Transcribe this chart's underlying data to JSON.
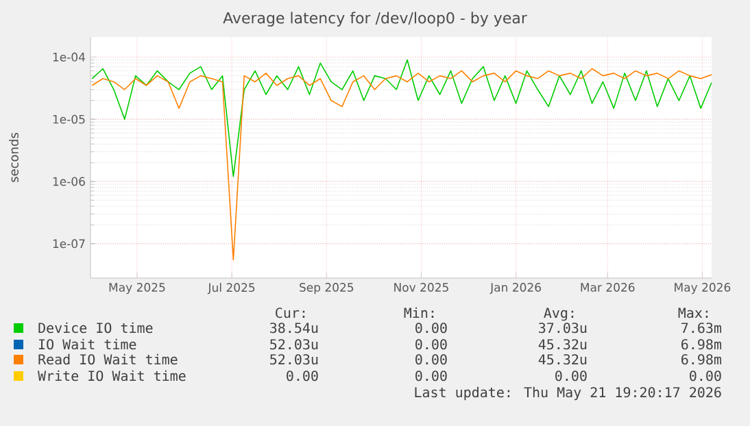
{
  "chart_data": {
    "type": "line",
    "title": "Average latency for /dev/loop0 - by year",
    "ylabel": "seconds",
    "log": true,
    "grid": true,
    "legend": "bottom",
    "xlim": [
      "2025-04-16",
      "2026-05-21"
    ],
    "xticks": [
      {
        "value": "2025-05-16",
        "label": "May 2025"
      },
      {
        "value": "2025-07-16",
        "label": "Jul 2025"
      },
      {
        "value": "2025-09-15",
        "label": "Sep 2025"
      },
      {
        "value": "2025-11-15",
        "label": "Nov 2025"
      },
      {
        "value": "2026-01-15",
        "label": "Jan 2026"
      },
      {
        "value": "2026-03-15",
        "label": "Mar 2026"
      },
      {
        "value": "2026-05-15",
        "label": "May 2026"
      }
    ],
    "ylim": [
      2.8e-08,
      0.00021
    ],
    "yticks": [
      {
        "value": 1e-07,
        "label": "1e-07"
      },
      {
        "value": 1e-06,
        "label": "1e-06"
      },
      {
        "value": 1e-05,
        "label": "1e-05"
      },
      {
        "value": 0.0001,
        "label": "1e-04"
      }
    ],
    "x": [
      "2025-04-17",
      "2025-04-24",
      "2025-05-01",
      "2025-05-08",
      "2025-05-15",
      "2025-05-22",
      "2025-05-29",
      "2025-06-05",
      "2025-06-12",
      "2025-06-19",
      "2025-06-26",
      "2025-07-03",
      "2025-07-10",
      "2025-07-17",
      "2025-07-24",
      "2025-07-31",
      "2025-08-07",
      "2025-08-14",
      "2025-08-21",
      "2025-08-28",
      "2025-09-04",
      "2025-09-11",
      "2025-09-18",
      "2025-09-25",
      "2025-10-02",
      "2025-10-09",
      "2025-10-16",
      "2025-10-23",
      "2025-10-30",
      "2025-11-06",
      "2025-11-13",
      "2025-11-20",
      "2025-11-27",
      "2025-12-04",
      "2025-12-11",
      "2025-12-18",
      "2025-12-25",
      "2026-01-01",
      "2026-01-08",
      "2026-01-15",
      "2026-01-22",
      "2026-01-29",
      "2026-02-05",
      "2026-02-12",
      "2026-02-19",
      "2026-02-26",
      "2026-03-05",
      "2026-03-12",
      "2026-03-19",
      "2026-03-26",
      "2026-04-02",
      "2026-04-09",
      "2026-04-16",
      "2026-04-23",
      "2026-04-30",
      "2026-05-07",
      "2026-05-14",
      "2026-05-21"
    ],
    "series": [
      {
        "name": "Device IO time",
        "color": "#00cc00",
        "values": [
          4.5e-05,
          6.5e-05,
          3e-05,
          1e-05,
          5e-05,
          3.5e-05,
          6e-05,
          4e-05,
          3e-05,
          5.5e-05,
          7e-05,
          3e-05,
          5e-05,
          1.2e-06,
          3e-05,
          6e-05,
          2.5e-05,
          5e-05,
          3e-05,
          7e-05,
          2.5e-05,
          8e-05,
          4e-05,
          3e-05,
          6e-05,
          2e-05,
          5e-05,
          4.5e-05,
          3e-05,
          9e-05,
          2e-05,
          5e-05,
          2.5e-05,
          6e-05,
          1.8e-05,
          4.5e-05,
          7e-05,
          2e-05,
          5e-05,
          1.8e-05,
          6e-05,
          3e-05,
          1.6e-05,
          5e-05,
          2.5e-05,
          6e-05,
          1.8e-05,
          4e-05,
          1.5e-05,
          5.5e-05,
          2e-05,
          6e-05,
          1.6e-05,
          4.5e-05,
          2e-05,
          5e-05,
          1.5e-05,
          3.9e-05
        ]
      },
      {
        "name": "IO Wait time",
        "color": "#0066b3",
        "values": [
          null,
          null,
          null,
          null,
          null,
          null,
          null,
          null,
          null,
          null,
          null,
          null,
          null,
          null,
          null,
          null,
          null,
          null,
          null,
          null,
          null,
          null,
          null,
          null,
          null,
          null,
          null,
          null,
          null,
          null,
          null,
          null,
          null,
          null,
          null,
          null,
          null,
          null,
          null,
          null,
          null,
          null,
          null,
          null,
          null,
          null,
          null,
          null,
          null,
          null,
          null,
          null,
          null,
          null,
          null,
          null,
          null,
          null
        ]
      },
      {
        "name": "Read IO Wait time",
        "color": "#ff8000",
        "values": [
          3.5e-05,
          4.5e-05,
          4e-05,
          3e-05,
          4.5e-05,
          3.5e-05,
          5e-05,
          4e-05,
          1.5e-05,
          4e-05,
          5e-05,
          4.5e-05,
          4e-05,
          5.5e-08,
          5e-05,
          4e-05,
          5.5e-05,
          3.5e-05,
          4.5e-05,
          5e-05,
          3.5e-05,
          4.5e-05,
          2e-05,
          1.6e-05,
          4e-05,
          5e-05,
          3e-05,
          4.5e-05,
          5e-05,
          4e-05,
          5.5e-05,
          4e-05,
          5e-05,
          4.5e-05,
          6e-05,
          4e-05,
          5e-05,
          5.5e-05,
          4e-05,
          6e-05,
          5e-05,
          4.5e-05,
          6e-05,
          5e-05,
          5.5e-05,
          4.5e-05,
          6.5e-05,
          5e-05,
          5.5e-05,
          4.5e-05,
          6e-05,
          5e-05,
          5.5e-05,
          4.5e-05,
          6e-05,
          5e-05,
          4.5e-05,
          5.2e-05
        ]
      },
      {
        "name": "Write IO Wait time",
        "color": "#ffcc00",
        "values": [
          null,
          null,
          null,
          null,
          null,
          null,
          null,
          null,
          null,
          null,
          null,
          null,
          null,
          null,
          null,
          null,
          null,
          null,
          null,
          null,
          null,
          null,
          null,
          null,
          null,
          null,
          null,
          null,
          null,
          null,
          null,
          null,
          null,
          null,
          null,
          null,
          null,
          null,
          null,
          null,
          null,
          null,
          null,
          null,
          null,
          null,
          null,
          null,
          null,
          null,
          null,
          null,
          null,
          null,
          null,
          null,
          null,
          null
        ]
      }
    ],
    "annotations": [
      "Cur:",
      "Min:",
      "Avg:",
      "Max:",
      "38.54u",
      "0.00",
      "37.03u",
      "7.63m",
      "52.03u",
      "0.00",
      "45.32u",
      "6.98m",
      "52.03u",
      "0.00",
      "45.32u",
      "6.98m",
      "0.00",
      "0.00",
      "0.00",
      "0.00",
      "Last update: Thu May 21 19:20:17 2026"
    ]
  }
}
